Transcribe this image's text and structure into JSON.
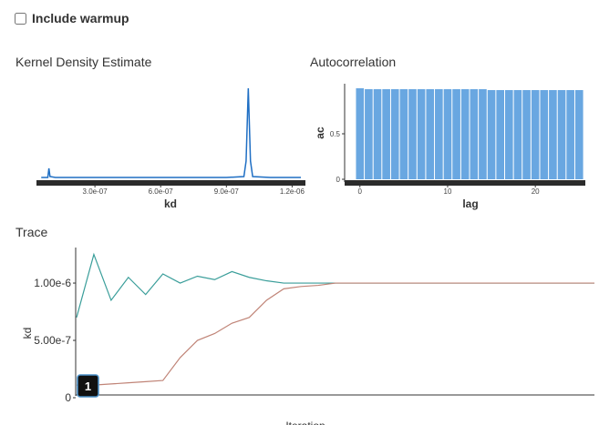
{
  "checkbox": {
    "label": "Include warmup"
  },
  "chart_data": [
    {
      "type": "line",
      "title": "Kernel Density Estimate",
      "xlabel": "kd",
      "x": [
        5.5e-08,
        8.5e-08,
        9e-08,
        9.5e-08,
        1.2e-07,
        3e-07,
        6e-07,
        9e-07,
        9.8e-07,
        9.9e-07,
        1e-06,
        1.01e-06,
        1.02e-06,
        1.1e-06,
        1.24e-06
      ],
      "values": [
        0.02,
        0.02,
        0.12,
        0.03,
        0.02,
        0.02,
        0.02,
        0.02,
        0.03,
        0.2,
        1.0,
        0.2,
        0.03,
        0.02,
        0.02
      ],
      "color": "#1f6fc4",
      "xlim": [
        5.4e-08,
        1.24e-06
      ],
      "ylim": [
        0,
        1.05
      ],
      "xticks": [
        {
          "value": 3e-07,
          "label": "3.0e-07"
        },
        {
          "value": 6e-07,
          "label": "6.0e-07"
        },
        {
          "value": 9e-07,
          "label": "9.0e-07"
        },
        {
          "value": 1.2e-06,
          "label": "1.2e-06"
        }
      ]
    },
    {
      "type": "bar",
      "title": "Autocorrelation",
      "xlabel": "lag",
      "ylabel": "ac",
      "x": [
        0,
        1,
        2,
        3,
        4,
        5,
        6,
        7,
        8,
        9,
        10,
        11,
        12,
        13,
        14,
        15,
        16,
        17,
        18,
        19,
        20,
        21,
        22,
        23,
        24,
        25
      ],
      "values": [
        1.0,
        0.99,
        0.99,
        0.99,
        0.99,
        0.99,
        0.99,
        0.99,
        0.99,
        0.99,
        0.99,
        0.99,
        0.99,
        0.99,
        0.99,
        0.98,
        0.98,
        0.98,
        0.98,
        0.98,
        0.98,
        0.98,
        0.98,
        0.98,
        0.98,
        0.98
      ],
      "color": "#69a7e1",
      "xlim": [
        -0.6,
        25.7
      ],
      "ylim": [
        0,
        1.05
      ],
      "xticks": [
        0,
        10,
        20
      ],
      "yticks": [
        0,
        0.5
      ]
    },
    {
      "type": "line",
      "title": "Trace",
      "xlabel": "Iteration",
      "ylabel": "kd",
      "series": [
        {
          "color": "#3a9e9a",
          "values": [
            7e-07,
            1.25e-06,
            8.5e-07,
            1.05e-06,
            9e-07,
            1.08e-06,
            1e-06,
            1.06e-06,
            1.03e-06,
            1.1e-06,
            1.05e-06,
            1.02e-06,
            1e-06,
            1e-06,
            1e-06,
            1e-06,
            1e-06,
            1e-06,
            1e-06,
            1e-06,
            1e-06,
            1e-06,
            1e-06,
            1e-06,
            1e-06,
            1e-06,
            1e-06,
            1e-06,
            1e-06,
            1e-06,
            1e-06
          ]
        },
        {
          "color": "#c08477",
          "values": [
            1.1e-07,
            1.1e-07,
            1.2e-07,
            1.3e-07,
            1.4e-07,
            1.5e-07,
            3.5e-07,
            5e-07,
            5.6e-07,
            6.5e-07,
            7e-07,
            8.5e-07,
            9.5e-07,
            9.7e-07,
            9.8e-07,
            1e-06,
            1e-06,
            1e-06,
            1e-06,
            1e-06,
            1e-06,
            1e-06,
            1e-06,
            1e-06,
            1e-06,
            1e-06,
            1e-06,
            1e-06,
            1e-06,
            1e-06,
            1e-06
          ]
        }
      ],
      "ylim": [
        0,
        1.31e-06
      ],
      "yticks": [
        0,
        {
          "value": 5e-07,
          "label": "5.00e-7"
        },
        {
          "value": 1e-06,
          "label": "1.00e-6"
        }
      ],
      "badge": "1"
    }
  ]
}
